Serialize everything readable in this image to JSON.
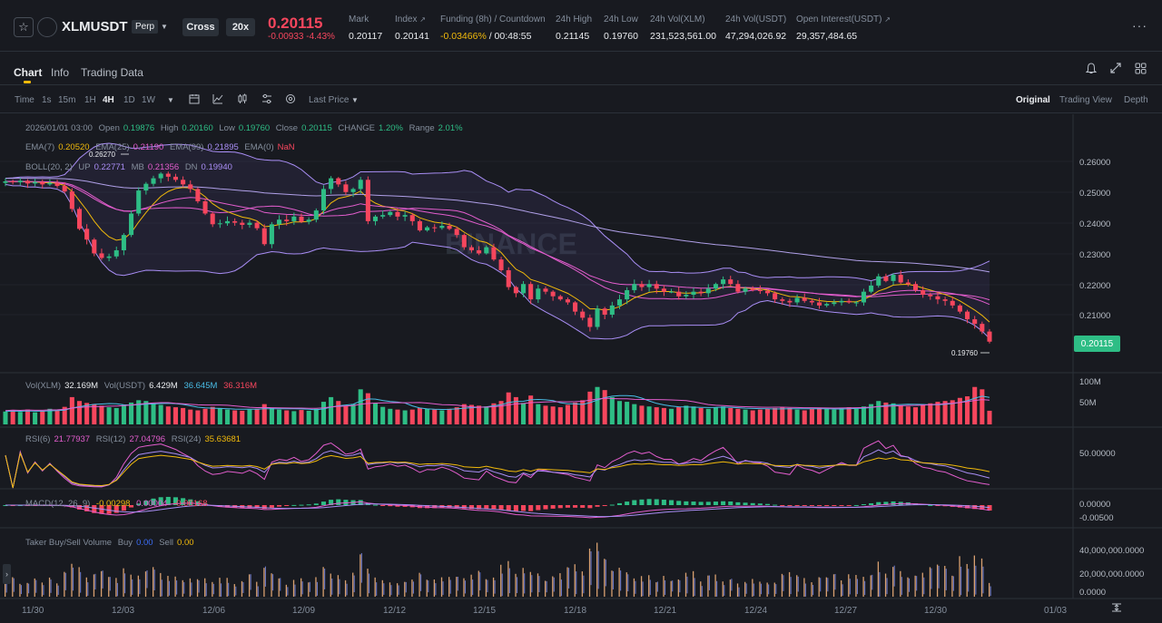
{
  "header": {
    "symbol": "XLMUSDT",
    "contract_type": "Perp",
    "margin_mode": "Cross",
    "leverage": "20x",
    "last_price": "0.20115",
    "change": "-0.00933 -4.43%",
    "stats": [
      {
        "label": "Mark",
        "value": "0.20117"
      },
      {
        "label": "Index",
        "value": "0.20141"
      },
      {
        "label": "Funding (8h) / Countdown",
        "value_a": "-0.03466%",
        "value_b": " / 00:48:55"
      },
      {
        "label": "24h High",
        "value": "0.21145"
      },
      {
        "label": "24h Low",
        "value": "0.19760"
      },
      {
        "label": "24h Vol(XLM)",
        "value": "231,523,561.00"
      },
      {
        "label": "24h Vol(USDT)",
        "value": "47,294,026.92"
      },
      {
        "label": "Open Interest(USDT)",
        "value": "29,357,484.65"
      }
    ]
  },
  "tabs": [
    "Chart",
    "Info",
    "Trading Data"
  ],
  "toolbar": {
    "timeframes": [
      "Time",
      "1s",
      "15m",
      "1H",
      "4H",
      "1D",
      "1W"
    ],
    "active_timeframe": "4H",
    "price_type": "Last Price",
    "views": [
      "Original",
      "Trading View",
      "Depth"
    ],
    "active_view": "Original"
  },
  "ohlc_legend": {
    "date": "2026/01/01 03:00",
    "open_label": "Open",
    "open": "0.19876",
    "high_label": "High",
    "high": "0.20160",
    "low_label": "Low",
    "low": "0.19760",
    "close_label": "Close",
    "close": "0.20115",
    "change_label": "CHANGE",
    "change": "1.20%",
    "range_label": "Range",
    "range": "2.01%"
  },
  "ema_legend": [
    {
      "label": "EMA(7)",
      "value": "0.20520",
      "color": "#f0b90b"
    },
    {
      "label": "EMA(25)",
      "value": "0.21190",
      "color": "#e25dcd"
    },
    {
      "label": "EMA(99)",
      "value": "0.21895",
      "color": "#a98ef5"
    },
    {
      "label": "EMA(0)",
      "value": "NaN",
      "color": "#f6465d"
    }
  ],
  "boll_legend": {
    "label": "BOLL(20, 2)",
    "up_label": "UP",
    "up": "0.22771",
    "mb_label": "MB",
    "mb": "0.21356",
    "dn_label": "DN",
    "dn": "0.19940"
  },
  "chart_annotations": {
    "high_marker": "0.26270",
    "low_marker": "0.19760",
    "watermark": "BINANCE"
  },
  "price_axis": [
    "0.26000",
    "0.25000",
    "0.24000",
    "0.23000",
    "0.22000",
    "0.21000"
  ],
  "last_price_tag": "0.20115",
  "volume_legend": [
    {
      "label": "Vol(XLM)",
      "value": "32.169M"
    },
    {
      "label": "Vol(USDT)",
      "value": "6.429M"
    },
    {
      "label": "",
      "value": "36.645M",
      "color": "#49bde6"
    },
    {
      "label": "",
      "value": "36.316M",
      "color": "#f6465d"
    }
  ],
  "volume_axis": [
    "100M",
    "50M"
  ],
  "rsi_legend": [
    {
      "label": "RSI(6)",
      "value": "21.77937",
      "color": "#e25dcd"
    },
    {
      "label": "RSI(12)",
      "value": "27.04796",
      "color": "#e25dcd"
    },
    {
      "label": "RSI(24)",
      "value": "35.63681",
      "color": "#f0b90b"
    }
  ],
  "rsi_axis": [
    "50.00000"
  ],
  "macd_legend": {
    "label": "MACD(12, 26, 9)",
    "v1": "-0.00298",
    "v2": "0.00004",
    "v3": "-0.00168"
  },
  "macd_axis": [
    "0.00000",
    "-0.00500"
  ],
  "taker_legend": {
    "label": "Taker Buy/Sell Volume",
    "buy_label": "Buy",
    "buy": "0.00",
    "sell_label": "Sell",
    "sell": "0.00"
  },
  "taker_axis": [
    "40,000,000.0000",
    "20,000,000.0000",
    "0.0000"
  ],
  "dates": [
    "11/30",
    "12/03",
    "12/06",
    "12/09",
    "12/12",
    "12/15",
    "12/18",
    "12/21",
    "12/24",
    "12/27",
    "12/30",
    "01/03"
  ],
  "colors": {
    "up": "#2ebd85",
    "down": "#f6465d",
    "accent": "#f0b90b"
  },
  "chart_data": {
    "type": "candlestick",
    "ylim": [
      0.196,
      0.268
    ],
    "close_series": [
      0.2535,
      0.2532,
      0.2537,
      0.2528,
      0.2533,
      0.2525,
      0.253,
      0.252,
      0.2502,
      0.2445,
      0.238,
      0.2345,
      0.23,
      0.2285,
      0.229,
      0.231,
      0.236,
      0.243,
      0.2505,
      0.2527,
      0.2545,
      0.256,
      0.255,
      0.254,
      0.2525,
      0.251,
      0.247,
      0.243,
      0.2395,
      0.2398,
      0.2405,
      0.24,
      0.2393,
      0.24,
      0.2382,
      0.233,
      0.2395,
      0.241,
      0.2405,
      0.242,
      0.2403,
      0.241,
      0.244,
      0.251,
      0.2545,
      0.2525,
      0.25,
      0.251,
      0.254,
      0.2405,
      0.242,
      0.2425,
      0.2435,
      0.242,
      0.2425,
      0.2405,
      0.2375,
      0.2385,
      0.2383,
      0.239,
      0.238,
      0.236,
      0.232,
      0.231,
      0.23,
      0.232,
      0.228,
      0.2245,
      0.219,
      0.217,
      0.22,
      0.215,
      0.2185,
      0.2175,
      0.216,
      0.215,
      0.214,
      0.211,
      0.209,
      0.206,
      0.212,
      0.21,
      0.213,
      0.215,
      0.218,
      0.22,
      0.219,
      0.22,
      0.2185,
      0.2175,
      0.2175,
      0.216,
      0.2165,
      0.2175,
      0.217,
      0.2185,
      0.22,
      0.2215,
      0.22,
      0.2175,
      0.2185,
      0.218,
      0.2178,
      0.217,
      0.215,
      0.2145,
      0.214,
      0.2155,
      0.2145,
      0.214,
      0.213,
      0.2135,
      0.214,
      0.2145,
      0.214,
      0.214,
      0.2175,
      0.2195,
      0.2225,
      0.221,
      0.223,
      0.2205,
      0.22,
      0.218,
      0.2165,
      0.216,
      0.215,
      0.2145,
      0.213,
      0.211,
      0.2085,
      0.207,
      0.2045,
      0.2012
    ],
    "volume_series_m": [
      33,
      36,
      32,
      38,
      31,
      34,
      40,
      37,
      45,
      70,
      60,
      55,
      52,
      48,
      44,
      42,
      50,
      56,
      62,
      60,
      54,
      50,
      46,
      44,
      42,
      38,
      36,
      40,
      45,
      42,
      38,
      36,
      35,
      38,
      40,
      52,
      42,
      38,
      36,
      34,
      37,
      35,
      40,
      58,
      70,
      60,
      48,
      52,
      90,
      80,
      55,
      45,
      40,
      38,
      36,
      38,
      42,
      40,
      38,
      36,
      40,
      44,
      52,
      50,
      48,
      46,
      54,
      60,
      82,
      70,
      55,
      74,
      52,
      48,
      46,
      44,
      50,
      56,
      62,
      84,
      96,
      88,
      70,
      60,
      58,
      52,
      48,
      46,
      44,
      42,
      40,
      44,
      48,
      46,
      42,
      40,
      44,
      46,
      42,
      40,
      38,
      36,
      38,
      40,
      42,
      44,
      42,
      38,
      36,
      40,
      42,
      40,
      38,
      42,
      44,
      40,
      46,
      52,
      60,
      56,
      54,
      48,
      46,
      44,
      50,
      54,
      58,
      60,
      62,
      68,
      72,
      96,
      90,
      35
    ]
  }
}
